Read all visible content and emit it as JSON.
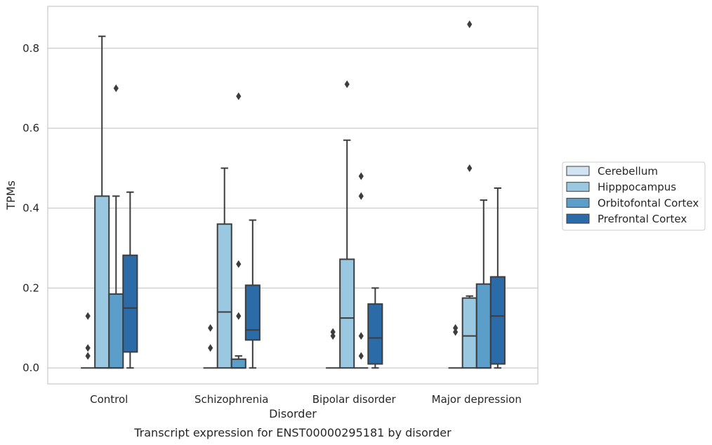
{
  "caption": "Transcript expression for ENST00000295181 by disorder",
  "chart_data": {
    "type": "box",
    "xlabel": "Disorder",
    "ylabel": "TPMs",
    "ylim": [
      -0.04,
      0.905
    ],
    "yticks": [
      0.0,
      0.2,
      0.4,
      0.6,
      0.8
    ],
    "ytick_labels": [
      "0.0",
      "0.2",
      "0.4",
      "0.6",
      "0.8"
    ],
    "grid": "horizontal",
    "legend_position": "right",
    "categories": [
      "Control",
      "Schizophrenia",
      "Bipolar disorder",
      "Major depression"
    ],
    "series": [
      {
        "name": "Cerebellum",
        "color": "#d2e3f3",
        "boxes": [
          {
            "whislo": 0,
            "q1": 0,
            "med": 0,
            "q3": 0,
            "whishi": 0,
            "fliers": [
              0.03,
              0.05,
              0.13
            ]
          },
          {
            "whislo": 0,
            "q1": 0,
            "med": 0,
            "q3": 0,
            "whishi": 0,
            "fliers": [
              0.05,
              0.1
            ]
          },
          {
            "whislo": 0,
            "q1": 0,
            "med": 0,
            "q3": 0,
            "whishi": 0,
            "fliers": [
              0.08,
              0.09
            ]
          },
          {
            "whislo": 0,
            "q1": 0,
            "med": 0,
            "q3": 0,
            "whishi": 0,
            "fliers": [
              0.09,
              0.1
            ]
          }
        ]
      },
      {
        "name": "Hipppocampus",
        "color": "#9ac8e0",
        "boxes": [
          {
            "whislo": 0,
            "q1": 0,
            "med": 0,
            "q3": 0.43,
            "whishi": 0.83,
            "fliers": []
          },
          {
            "whislo": 0,
            "q1": 0,
            "med": 0.14,
            "q3": 0.36,
            "whishi": 0.5,
            "fliers": []
          },
          {
            "whislo": 0,
            "q1": 0,
            "med": 0.125,
            "q3": 0.272,
            "whishi": 0.57,
            "fliers": [
              0.71
            ]
          },
          {
            "whislo": 0,
            "q1": 0,
            "med": 0.08,
            "q3": 0.175,
            "whishi": 0.18,
            "fliers": [
              0.5,
              0.86
            ]
          }
        ]
      },
      {
        "name": "Orbitofontal Cortex",
        "color": "#5a9ec9",
        "boxes": [
          {
            "whislo": 0,
            "q1": 0,
            "med": 0,
            "q3": 0.185,
            "whishi": 0.43,
            "fliers": [
              0.7
            ]
          },
          {
            "whislo": 0,
            "q1": 0,
            "med": 0,
            "q3": 0.022,
            "whishi": 0.03,
            "fliers": [
              0.13,
              0.26,
              0.68
            ]
          },
          {
            "whislo": 0,
            "q1": 0,
            "med": 0,
            "q3": 0,
            "whishi": 0,
            "fliers": [
              0.03,
              0.08,
              0.43,
              0.48
            ]
          },
          {
            "whislo": 0,
            "q1": 0,
            "med": 0,
            "q3": 0.21,
            "whishi": 0.42,
            "fliers": []
          }
        ]
      },
      {
        "name": "Prefrontal Cortex",
        "color": "#2a6ba8",
        "boxes": [
          {
            "whislo": 0,
            "q1": 0.04,
            "med": 0.15,
            "q3": 0.282,
            "whishi": 0.44,
            "fliers": []
          },
          {
            "whislo": 0,
            "q1": 0.07,
            "med": 0.095,
            "q3": 0.207,
            "whishi": 0.37,
            "fliers": []
          },
          {
            "whislo": 0,
            "q1": 0.01,
            "med": 0.075,
            "q3": 0.16,
            "whishi": 0.2,
            "fliers": []
          },
          {
            "whislo": 0,
            "q1": 0.01,
            "med": 0.13,
            "q3": 0.228,
            "whishi": 0.45,
            "fliers": []
          }
        ]
      }
    ],
    "line_color": "#3d3d3d",
    "grid_color": "#cccccc",
    "frame_color": "#cccccc"
  }
}
